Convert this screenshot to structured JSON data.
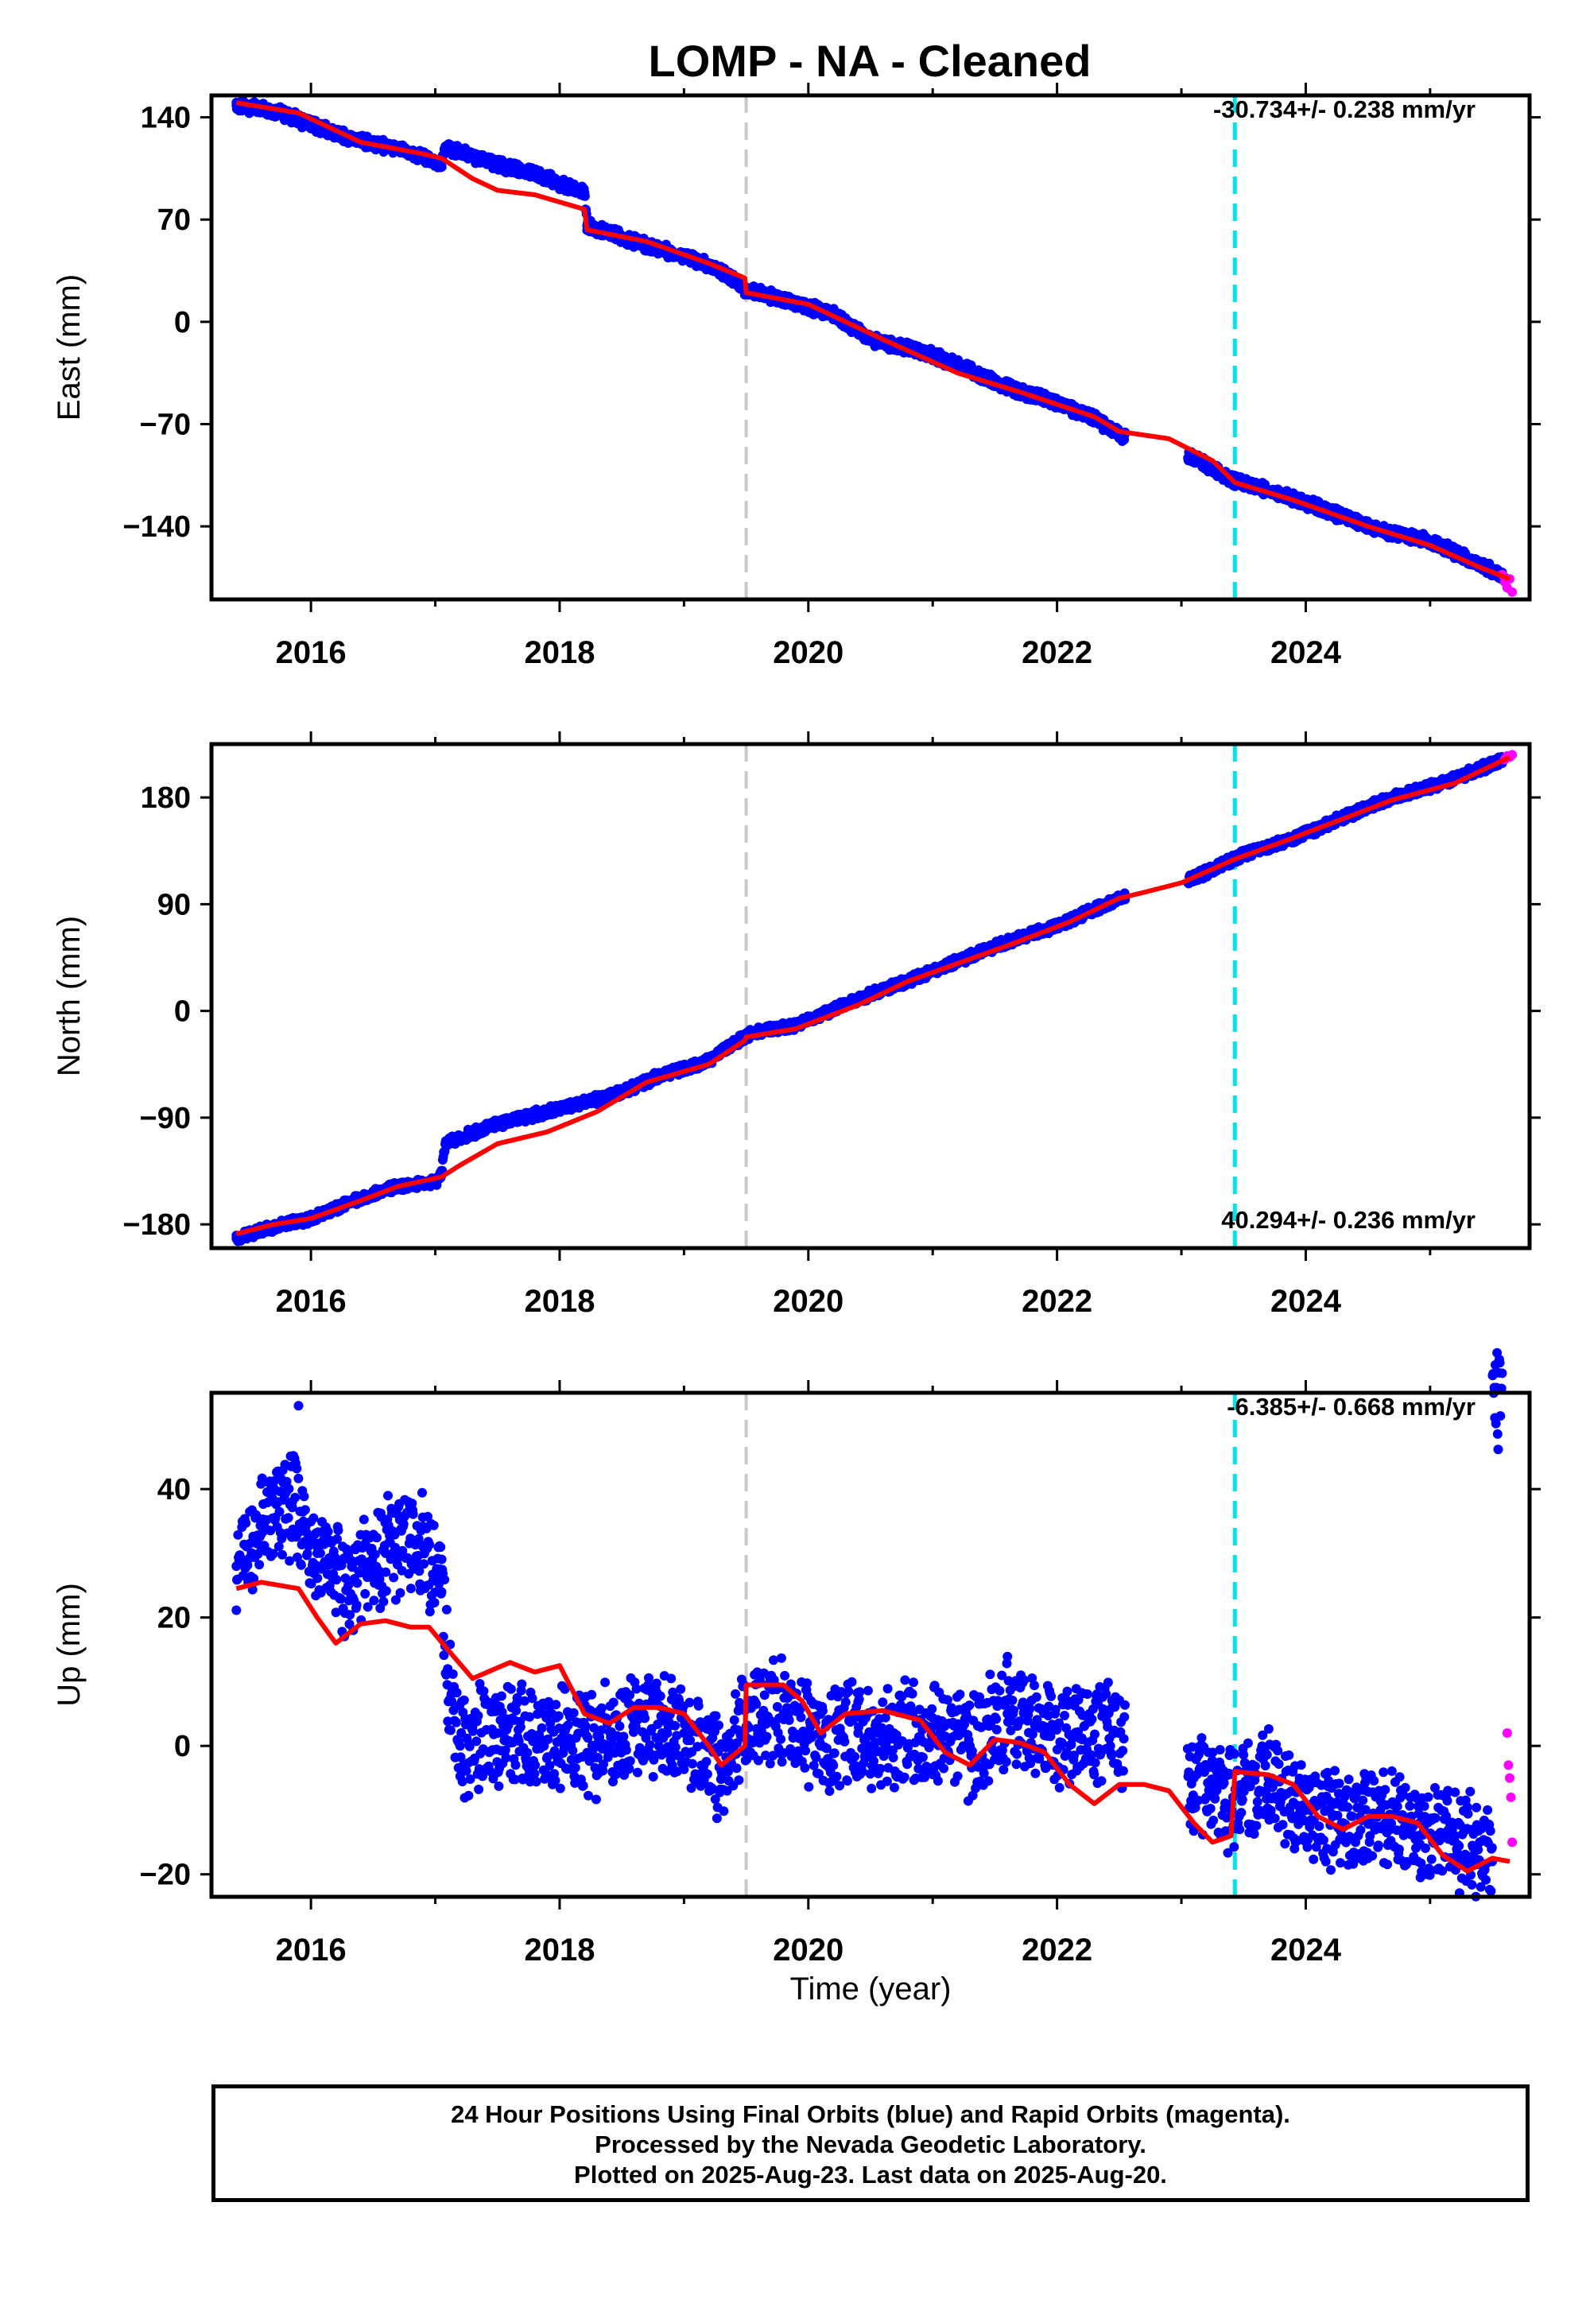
{
  "title": "LOMP  - NA - Cleaned",
  "xlabel": "Time (year)",
  "footer": {
    "line1": "24 Hour Positions Using Final Orbits (blue) and Rapid Orbits (magenta).",
    "line2": "Processed by the Nevada Geodetic Laboratory.",
    "line3": "Plotted on 2025-Aug-23. Last data on 2025-Aug-20."
  },
  "colors": {
    "final_points": "#0000ff",
    "rapid_points": "#ff00ff",
    "model": "#ff0000",
    "gray_line": "#c8c8c8",
    "cyan_line": "#00e5e5"
  },
  "chart_data": [
    {
      "type": "scatter",
      "panel": "east",
      "ylabel": "East (mm)",
      "rate_text": "-30.734+/- 0.238 mm/yr",
      "xlim": [
        2015.2,
        2025.8
      ],
      "ylim": [
        -190,
        155
      ],
      "yticks": [
        -140,
        -70,
        0,
        70,
        140
      ],
      "xticks": [
        2016,
        2018,
        2020,
        2022,
        2024
      ],
      "vlines": [
        {
          "x": 2019.5,
          "style": "gray"
        },
        {
          "x": 2023.43,
          "style": "cyan"
        }
      ],
      "model": [
        [
          2015.4,
          150
        ],
        [
          2015.9,
          143
        ],
        [
          2016.4,
          123
        ],
        [
          2016.9,
          115
        ],
        [
          2017.05,
          112
        ],
        [
          2017.3,
          98
        ],
        [
          2017.5,
          90
        ],
        [
          2017.8,
          87
        ],
        [
          2018.2,
          77
        ],
        [
          2018.22,
          63
        ],
        [
          2018.7,
          55
        ],
        [
          2019.2,
          40
        ],
        [
          2019.49,
          30
        ],
        [
          2019.5,
          20
        ],
        [
          2020.0,
          12
        ],
        [
          2020.6,
          -12
        ],
        [
          2021.2,
          -35
        ],
        [
          2021.7,
          -48
        ],
        [
          2022.3,
          -65
        ],
        [
          2022.5,
          -75
        ],
        [
          2022.9,
          -80
        ],
        [
          2023.25,
          -95
        ],
        [
          2023.43,
          -110
        ],
        [
          2023.9,
          -122
        ],
        [
          2024.5,
          -140
        ],
        [
          2025.0,
          -153
        ],
        [
          2025.4,
          -168
        ],
        [
          2025.64,
          -176
        ]
      ],
      "final": [
        [
          2015.4,
          148
        ],
        [
          2015.7,
          145
        ],
        [
          2016.0,
          135
        ],
        [
          2016.3,
          126
        ],
        [
          2016.6,
          120
        ],
        [
          2016.9,
          113
        ],
        [
          2017.05,
          107
        ],
        [
          2017.08,
          120
        ],
        [
          2017.4,
          110
        ],
        [
          2017.8,
          101
        ],
        [
          2018.2,
          88
        ],
        [
          2018.22,
          66
        ],
        [
          2018.6,
          55
        ],
        [
          2019.0,
          45
        ],
        [
          2019.3,
          35
        ],
        [
          2019.5,
          22
        ],
        [
          2019.8,
          15
        ],
        [
          2020.2,
          5
        ],
        [
          2020.5,
          -12
        ],
        [
          2020.9,
          -20
        ],
        [
          2021.3,
          -33
        ],
        [
          2021.6,
          -45
        ],
        [
          2022.0,
          -55
        ],
        [
          2022.3,
          -66
        ],
        [
          2022.5,
          -77
        ],
        [
          2023.1,
          -93
        ],
        [
          2023.4,
          -108
        ],
        [
          2023.8,
          -118
        ],
        [
          2024.2,
          -130
        ],
        [
          2024.6,
          -143
        ],
        [
          2025.0,
          -150
        ],
        [
          2025.35,
          -164
        ],
        [
          2025.6,
          -175
        ]
      ],
      "rapid": [
        [
          2025.58,
          -173
        ],
        [
          2025.6,
          -178
        ],
        [
          2025.62,
          -182
        ],
        [
          2025.64,
          -176
        ],
        [
          2025.66,
          -185
        ]
      ]
    },
    {
      "type": "scatter",
      "panel": "north",
      "ylabel": "North (mm)",
      "rate_text": "40.294+/- 0.236 mm/yr",
      "xlim": [
        2015.2,
        2025.8
      ],
      "ylim": [
        -200,
        225
      ],
      "yticks": [
        -180,
        -90,
        0,
        90,
        180
      ],
      "xticks": [
        2016,
        2018,
        2020,
        2022,
        2024
      ],
      "vlines": [
        {
          "x": 2019.5,
          "style": "gray"
        },
        {
          "x": 2023.43,
          "style": "cyan"
        }
      ],
      "model": [
        [
          2015.4,
          -188
        ],
        [
          2015.7,
          -180
        ],
        [
          2016.0,
          -175
        ],
        [
          2016.4,
          -160
        ],
        [
          2016.7,
          -148
        ],
        [
          2017.05,
          -140
        ],
        [
          2017.2,
          -130
        ],
        [
          2017.5,
          -112
        ],
        [
          2017.9,
          -102
        ],
        [
          2018.3,
          -85
        ],
        [
          2018.7,
          -60
        ],
        [
          2019.2,
          -45
        ],
        [
          2019.49,
          -25
        ],
        [
          2019.5,
          -22
        ],
        [
          2019.9,
          -15
        ],
        [
          2020.4,
          5
        ],
        [
          2020.8,
          25
        ],
        [
          2021.2,
          40
        ],
        [
          2021.6,
          55
        ],
        [
          2022.1,
          75
        ],
        [
          2022.5,
          95
        ],
        [
          2022.7,
          100
        ],
        [
          2023.0,
          108
        ],
        [
          2023.43,
          128
        ],
        [
          2023.8,
          142
        ],
        [
          2024.3,
          162
        ],
        [
          2024.7,
          178
        ],
        [
          2025.2,
          192
        ],
        [
          2025.64,
          214
        ]
      ],
      "final": [
        [
          2015.4,
          -192
        ],
        [
          2015.7,
          -182
        ],
        [
          2016.0,
          -175
        ],
        [
          2016.4,
          -158
        ],
        [
          2016.7,
          -148
        ],
        [
          2017.0,
          -145
        ],
        [
          2017.05,
          -138
        ],
        [
          2017.08,
          -112
        ],
        [
          2017.5,
          -95
        ],
        [
          2017.9,
          -85
        ],
        [
          2018.4,
          -72
        ],
        [
          2018.8,
          -55
        ],
        [
          2019.2,
          -42
        ],
        [
          2019.5,
          -20
        ],
        [
          2019.9,
          -12
        ],
        [
          2020.4,
          10
        ],
        [
          2020.8,
          25
        ],
        [
          2021.2,
          42
        ],
        [
          2021.6,
          58
        ],
        [
          2022.0,
          72
        ],
        [
          2022.5,
          95
        ],
        [
          2023.1,
          112
        ],
        [
          2023.5,
          132
        ],
        [
          2023.9,
          145
        ],
        [
          2024.3,
          163
        ],
        [
          2024.7,
          180
        ],
        [
          2025.1,
          192
        ],
        [
          2025.6,
          212
        ]
      ],
      "rapid": [
        [
          2025.6,
          212
        ],
        [
          2025.62,
          215
        ],
        [
          2025.64,
          214
        ],
        [
          2025.66,
          216
        ]
      ]
    },
    {
      "type": "scatter",
      "panel": "up",
      "ylabel": "Up (mm)",
      "rate_text": "-6.385+/- 0.668 mm/yr",
      "xlim": [
        2015.2,
        2025.8
      ],
      "ylim": [
        -23.5,
        55
      ],
      "yticks": [
        -20,
        0,
        20,
        40
      ],
      "xticks": [
        2016,
        2018,
        2020,
        2022,
        2024
      ],
      "vlines": [
        {
          "x": 2019.5,
          "style": "gray"
        },
        {
          "x": 2023.43,
          "style": "cyan"
        }
      ],
      "model": [
        [
          2015.4,
          24.5
        ],
        [
          2015.6,
          25.5
        ],
        [
          2015.9,
          24.5
        ],
        [
          2016.05,
          20
        ],
        [
          2016.2,
          16
        ],
        [
          2016.4,
          19
        ],
        [
          2016.6,
          19.5
        ],
        [
          2016.8,
          18.5
        ],
        [
          2016.95,
          18.5
        ],
        [
          2017.1,
          15
        ],
        [
          2017.3,
          10.5
        ],
        [
          2017.6,
          13
        ],
        [
          2017.8,
          11.5
        ],
        [
          2018.0,
          12.5
        ],
        [
          2018.2,
          5
        ],
        [
          2018.4,
          3.5
        ],
        [
          2018.6,
          6
        ],
        [
          2018.8,
          6
        ],
        [
          2019.0,
          5
        ],
        [
          2019.2,
          0
        ],
        [
          2019.3,
          -3
        ],
        [
          2019.49,
          0
        ],
        [
          2019.5,
          9.5
        ],
        [
          2019.8,
          9.5
        ],
        [
          2019.95,
          7
        ],
        [
          2020.1,
          2
        ],
        [
          2020.3,
          5
        ],
        [
          2020.6,
          5.5
        ],
        [
          2020.9,
          4
        ],
        [
          2021.1,
          -1
        ],
        [
          2021.3,
          -3
        ],
        [
          2021.5,
          1
        ],
        [
          2021.7,
          0.5
        ],
        [
          2021.9,
          -1
        ],
        [
          2022.1,
          -6
        ],
        [
          2022.3,
          -9
        ],
        [
          2022.5,
          -6
        ],
        [
          2022.7,
          -6
        ],
        [
          2022.9,
          -7
        ],
        [
          2023.1,
          -12
        ],
        [
          2023.25,
          -15
        ],
        [
          2023.4,
          -14
        ],
        [
          2023.43,
          -4
        ],
        [
          2023.7,
          -4.5
        ],
        [
          2023.9,
          -6
        ],
        [
          2024.1,
          -11
        ],
        [
          2024.3,
          -13
        ],
        [
          2024.5,
          -11
        ],
        [
          2024.7,
          -11
        ],
        [
          2024.9,
          -12
        ],
        [
          2025.1,
          -17
        ],
        [
          2025.3,
          -19.5
        ],
        [
          2025.5,
          -17.5
        ],
        [
          2025.64,
          -18
        ]
      ],
      "final": [
        [
          2015.4,
          28
        ],
        [
          2015.6,
          33
        ],
        [
          2015.85,
          38
        ],
        [
          2016.05,
          30
        ],
        [
          2016.3,
          25
        ],
        [
          2016.6,
          30
        ],
        [
          2016.9,
          31
        ],
        [
          2017.05,
          24
        ],
        [
          2017.1,
          12
        ],
        [
          2017.2,
          0
        ],
        [
          2017.5,
          2
        ],
        [
          2017.9,
          1
        ],
        [
          2018.3,
          0
        ],
        [
          2018.6,
          4
        ],
        [
          2019.0,
          2
        ],
        [
          2019.3,
          -4
        ],
        [
          2019.5,
          3
        ],
        [
          2019.8,
          5
        ],
        [
          2020.1,
          0
        ],
        [
          2020.4,
          2
        ],
        [
          2020.7,
          1
        ],
        [
          2021.0,
          3
        ],
        [
          2021.3,
          0
        ],
        [
          2021.6,
          5
        ],
        [
          2021.9,
          3
        ],
        [
          2022.2,
          1
        ],
        [
          2022.5,
          2
        ],
        [
          2023.1,
          -5
        ],
        [
          2023.4,
          -9
        ],
        [
          2023.7,
          -5
        ],
        [
          2024.0,
          -10
        ],
        [
          2024.3,
          -12
        ],
        [
          2024.6,
          -10
        ],
        [
          2024.9,
          -14
        ],
        [
          2025.2,
          -14
        ],
        [
          2025.5,
          -18
        ],
        [
          2015.9,
          53
        ]
      ],
      "rapid": [
        [
          2025.62,
          2
        ],
        [
          2025.63,
          -3
        ],
        [
          2025.64,
          -5
        ],
        [
          2025.65,
          -8
        ],
        [
          2025.66,
          -15
        ]
      ]
    }
  ]
}
